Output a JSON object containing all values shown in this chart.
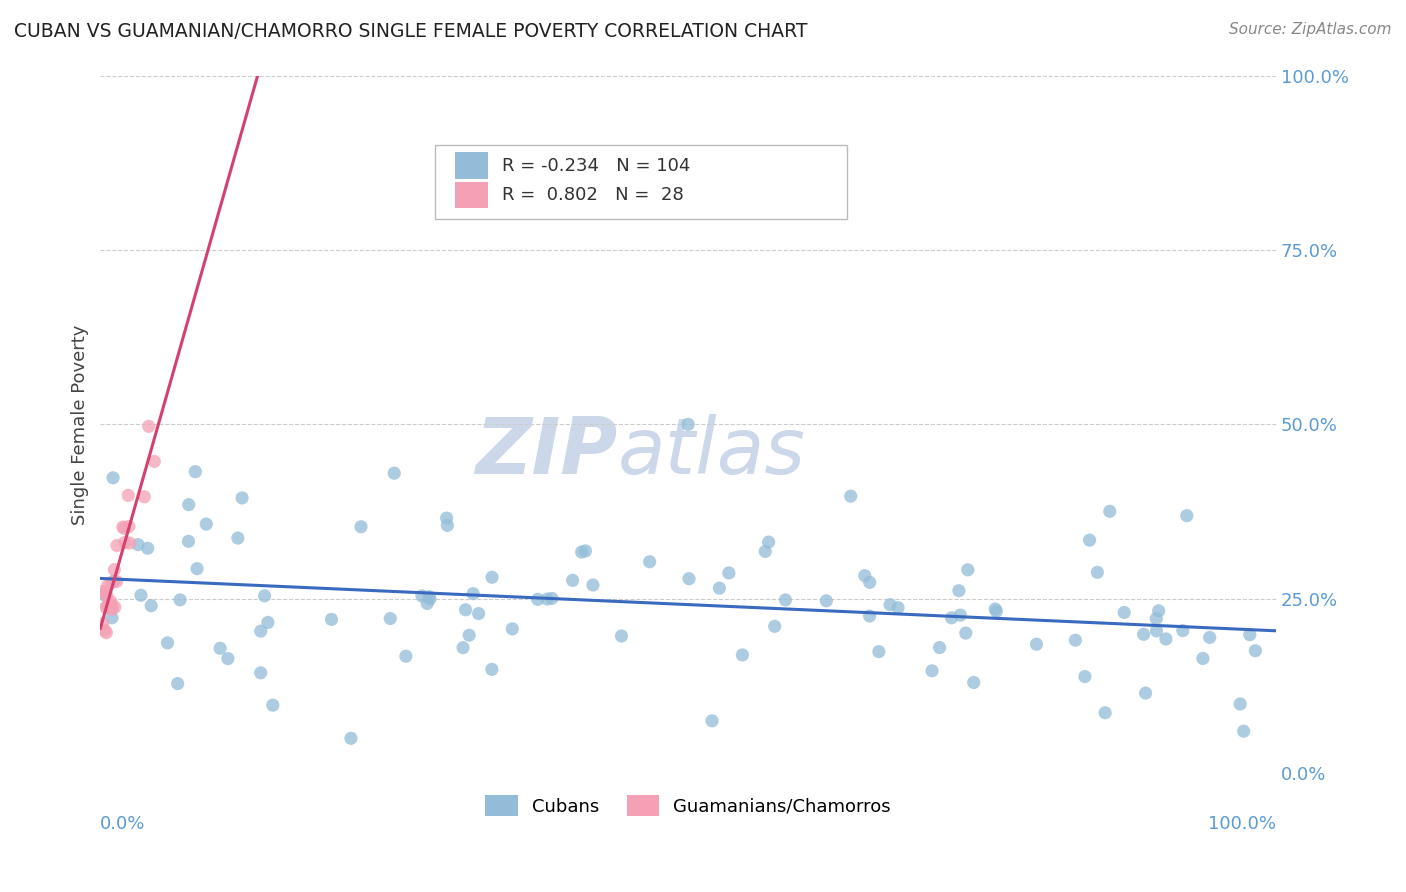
{
  "title": "CUBAN VS GUAMANIAN/CHAMORRO SINGLE FEMALE POVERTY CORRELATION CHART",
  "source": "Source: ZipAtlas.com",
  "ylabel": "Single Female Poverty",
  "ytick_vals": [
    0.0,
    0.25,
    0.5,
    0.75,
    1.0
  ],
  "xrange": [
    0.0,
    1.0
  ],
  "yrange": [
    0.0,
    1.0
  ],
  "legend_label1": "Cubans",
  "legend_label2": "Guamanians/Chamorros",
  "r1": "-0.234",
  "n1": "104",
  "r2": "0.802",
  "n2": "28",
  "color_blue": "#92bcd8",
  "color_pink": "#f4a0b5",
  "line_color_blue": "#3a6abf",
  "line_color_pink": "#d44070",
  "tick_color": "#5b9bd5",
  "watermark_zip": "ZIP",
  "watermark_atlas": "atlas",
  "watermark_color": "#ccd8ea",
  "background": "#ffffff",
  "grid_color": "#cccccc",
  "blue_r": -0.234,
  "blue_n": 104,
  "pink_r": 0.802,
  "pink_n": 28,
  "blue_seed": 7,
  "pink_seed": 13
}
